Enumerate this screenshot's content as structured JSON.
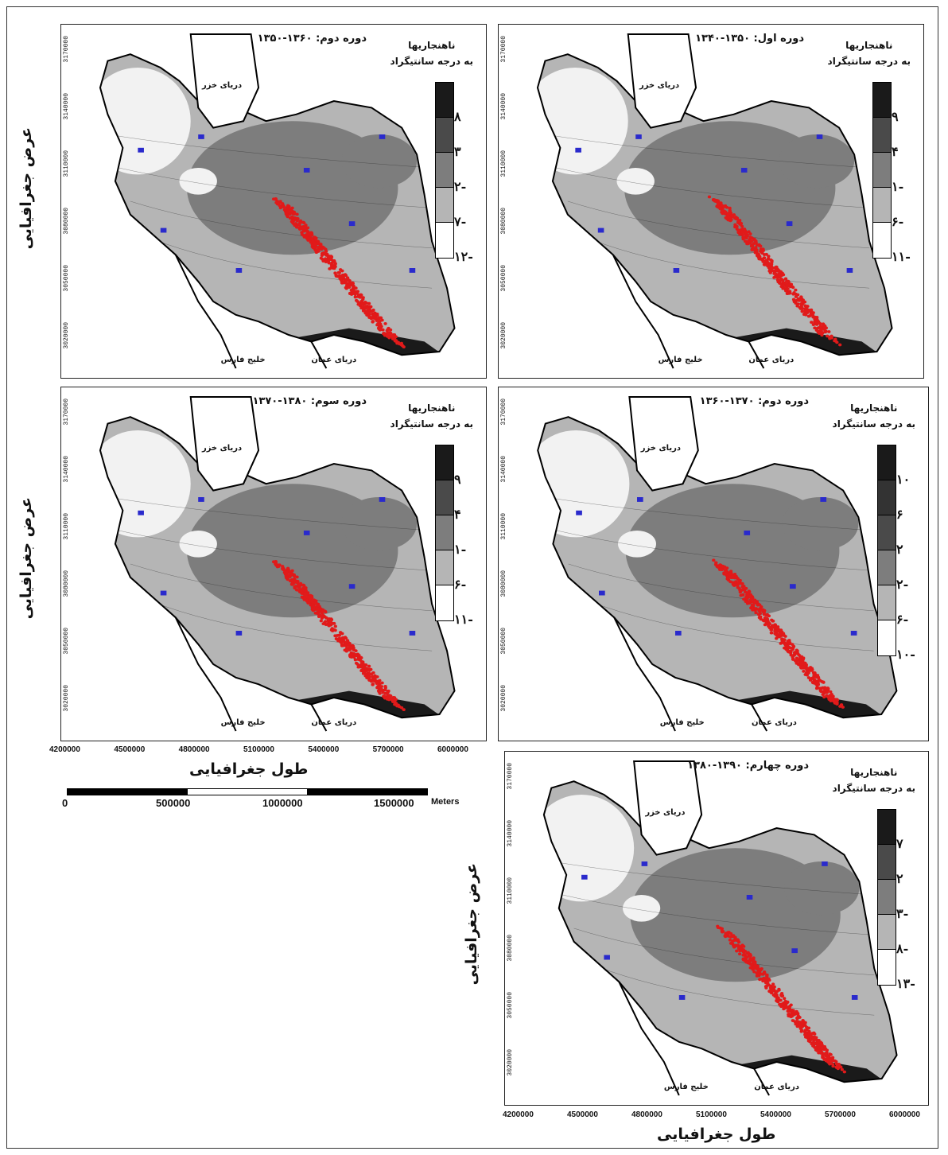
{
  "panels": [
    {
      "id": "p1",
      "title": "دوره اول: ۱۳۵۰-۱۳۴۰",
      "legend_title": [
        "ناهنجاریها",
        "به درجه سانتیگراد"
      ],
      "legend_labels": [
        "۹",
        "۴",
        "۱-",
        "۶-",
        "۱۱-"
      ],
      "sea": "دریای خزر",
      "gulf": "خلیج فارس",
      "oman": "دریای عمان",
      "yticks": [
        "3170000",
        "3140000",
        "3110000",
        "3080000",
        "3050000",
        "3020000"
      ]
    },
    {
      "id": "p2",
      "title": "دوره دوم: ۱۳۶۰-۱۳۵۰",
      "legend_title": [
        "ناهنجاریها",
        "به درجه سانتیگراد"
      ],
      "legend_labels": [
        "۸",
        "۳",
        "۲-",
        "۷-",
        "۱۲-"
      ],
      "sea": "دریای خزر",
      "gulf": "خلیج فارس",
      "oman": "دریای عمان",
      "yticks": [
        "3170000",
        "3140000",
        "3110000",
        "3080000",
        "3050000",
        "3020000"
      ]
    },
    {
      "id": "p3",
      "title": "دوره دوم: ۱۳۷۰-۱۳۶۰",
      "legend_title": [
        "ناهنجاریها",
        "به درجه سانتیگراد"
      ],
      "legend_labels": [
        "۱۰",
        "۶",
        "۲",
        "۲-",
        "۶-",
        "۱۰-"
      ],
      "sea": "دریای خزر",
      "gulf": "خلیج فارس",
      "oman": "دریای عمان",
      "yticks": [
        "3170000",
        "3140000",
        "3110000",
        "3080000",
        "3050000",
        "3020000"
      ]
    },
    {
      "id": "p4",
      "title": "دوره سوم: ۱۳۸۰-۱۳۷۰",
      "legend_title": [
        "ناهنجاریها",
        "به درجه سانتیگراد"
      ],
      "legend_labels": [
        "۹",
        "۴",
        "۱-",
        "۶-",
        "۱۱-"
      ],
      "sea": "دریای خزر",
      "gulf": "خلیج فارس",
      "oman": "دریای عمان",
      "yticks": [
        "3170000",
        "3140000",
        "3110000",
        "3080000",
        "3050000",
        "3020000"
      ]
    },
    {
      "id": "p5",
      "title": "دوره چهارم: ۱۳۹۰-۱۳۸۰",
      "legend_title": [
        "ناهنجاریها",
        "به درجه سانتیگراد"
      ],
      "legend_labels": [
        "۷",
        "۲",
        "۳-",
        "۸-",
        "۱۳-"
      ],
      "sea": "دریای خزر",
      "gulf": "خلیج فارس",
      "oman": "دریای عمان",
      "yticks": [
        "3170000",
        "3140000",
        "3110000",
        "3080000",
        "3050000",
        "3020000"
      ]
    }
  ],
  "axis": {
    "y_title": "عرض جغرافیایی",
    "x_title": "طول جغرافیایی",
    "x_ticks": [
      "4200000",
      "4500000",
      "4800000",
      "5100000",
      "5400000",
      "5700000",
      "6000000"
    ]
  },
  "scale": {
    "labels": [
      "0",
      "500000",
      "1000000",
      "1500000"
    ],
    "unit": "Meters"
  },
  "colors": {
    "bg": "#ffffff",
    "shade_darkest": "#1a1a1a",
    "shade_dark": "#4a4a4a",
    "shade_mid": "#7d7d7d",
    "shade_light": "#b5b5b5",
    "shade_lightest": "#f2f2f2",
    "contour_label": "#2a2acc",
    "points": "#e11a1a"
  }
}
